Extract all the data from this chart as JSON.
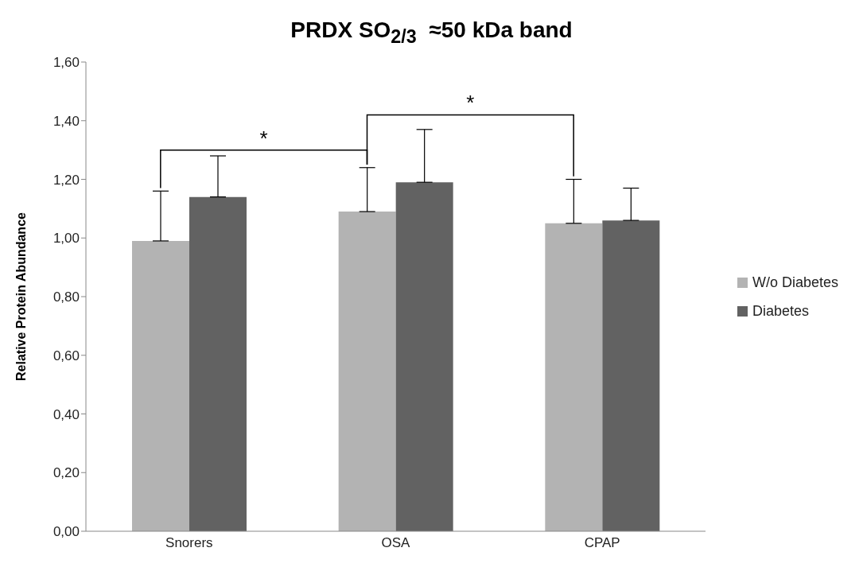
{
  "chart_data": {
    "type": "bar",
    "title": "PRDX SO$_{2/3}$  ≈50 kDa band",
    "ylabel": "Relative Protein Abundance",
    "categories": [
      "Snorers",
      "OSA",
      "CPAP"
    ],
    "series": [
      {
        "name": "W/o Diabetes",
        "color": "#b3b3b3",
        "values": [
          0.99,
          1.09,
          1.05
        ],
        "errors": [
          [
            0.99,
            1.16
          ],
          [
            1.09,
            1.24
          ],
          [
            1.05,
            1.2
          ]
        ]
      },
      {
        "name": "Diabetes",
        "color": "#626262",
        "values": [
          1.14,
          1.19,
          1.06
        ],
        "errors": [
          [
            1.14,
            1.28
          ],
          [
            1.19,
            1.37
          ],
          [
            1.06,
            1.17
          ]
        ]
      }
    ],
    "ylim": [
      0,
      1.6
    ],
    "yticks": [
      {
        "value": 0,
        "label": "0,00"
      },
      {
        "value": 0.2,
        "label": "0,20"
      },
      {
        "value": 0.4,
        "label": "0,40"
      },
      {
        "value": 0.6,
        "label": "0,60"
      },
      {
        "value": 0.8,
        "label": "0,80"
      },
      {
        "value": 1,
        "label": "1,00"
      },
      {
        "value": 1.2,
        "label": "1,20"
      },
      {
        "value": 1.4,
        "label": "1,40"
      },
      {
        "value": 1.6,
        "label": "1,60"
      }
    ],
    "annotations": [
      "*",
      "*"
    ],
    "legend": "right",
    "grid": false
  }
}
